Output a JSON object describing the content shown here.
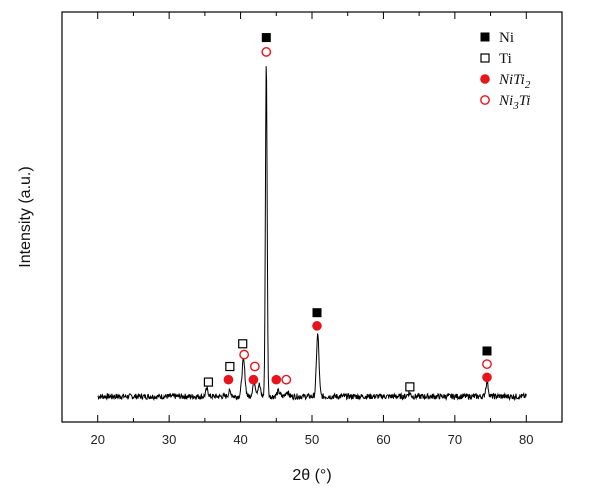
{
  "chart_data": {
    "type": "line",
    "xlabel": "2θ (°)",
    "ylabel": "Intensity (a.u.)",
    "xlim": [
      15,
      85
    ],
    "x_ticks": [
      20,
      30,
      40,
      50,
      60,
      70,
      80
    ],
    "y_ticks_shown": false,
    "grid": false,
    "legend_position": "top-right",
    "legend": [
      {
        "id": "Ni",
        "label": "Ni",
        "marker": "filled-square",
        "color": "#000000"
      },
      {
        "id": "Ti",
        "label": "Ti",
        "marker": "open-square",
        "color": "#000000"
      },
      {
        "id": "NiTi2",
        "label": "NiTi",
        "sub": "2",
        "marker": "filled-circle",
        "color": "#e8141c"
      },
      {
        "id": "Ni3Ti",
        "label": "Ni",
        "sub": "3",
        "label_tail": "Ti",
        "marker": "open-circle",
        "color": "#e8141c"
      }
    ],
    "series": [
      {
        "color": "#000000",
        "baseline": 4,
        "noise": 1.2,
        "peaks": [
          {
            "x": 35.3,
            "h": 3,
            "w": 0.25
          },
          {
            "x": 38.5,
            "h": 2,
            "w": 0.3
          },
          {
            "x": 40.4,
            "h": 15,
            "w": 0.3
          },
          {
            "x": 41.9,
            "h": 6,
            "w": 0.3
          },
          {
            "x": 42.6,
            "h": 5,
            "w": 0.25
          },
          {
            "x": 43.6,
            "h": 140,
            "w": 0.17
          },
          {
            "x": 45.3,
            "h": 2,
            "w": 0.3
          },
          {
            "x": 46.5,
            "h": 2,
            "w": 0.3
          },
          {
            "x": 50.8,
            "h": 26,
            "w": 0.25
          },
          {
            "x": 63.6,
            "h": 1.5,
            "w": 0.3
          },
          {
            "x": 74.5,
            "h": 6,
            "w": 0.25
          }
        ]
      }
    ],
    "ylim": [
      0,
      158
    ],
    "phase_markers": [
      {
        "phase": "Ni",
        "x": 43.6,
        "y": 154
      },
      {
        "phase": "Ni3Ti",
        "x": 43.6,
        "y": 148
      },
      {
        "phase": "Ni",
        "x": 50.7,
        "y": 39
      },
      {
        "phase": "NiTi2",
        "x": 50.7,
        "y": 33.5
      },
      {
        "phase": "Ni",
        "x": 74.5,
        "y": 23
      },
      {
        "phase": "Ni3Ti",
        "x": 74.5,
        "y": 17.5
      },
      {
        "phase": "NiTi2",
        "x": 74.5,
        "y": 12
      },
      {
        "phase": "Ti",
        "x": 40.3,
        "y": 26
      },
      {
        "phase": "Ni3Ti",
        "x": 40.5,
        "y": 21.5
      },
      {
        "phase": "Ti",
        "x": 38.5,
        "y": 16.5
      },
      {
        "phase": "Ni3Ti",
        "x": 42.0,
        "y": 16.5
      },
      {
        "phase": "NiTi2",
        "x": 38.3,
        "y": 11
      },
      {
        "phase": "NiTi2",
        "x": 41.8,
        "y": 11
      },
      {
        "phase": "Ti",
        "x": 35.5,
        "y": 10
      },
      {
        "phase": "NiTi2",
        "x": 45.0,
        "y": 11
      },
      {
        "phase": "Ni3Ti",
        "x": 46.4,
        "y": 11
      },
      {
        "phase": "Ti",
        "x": 63.7,
        "y": 8
      }
    ]
  }
}
